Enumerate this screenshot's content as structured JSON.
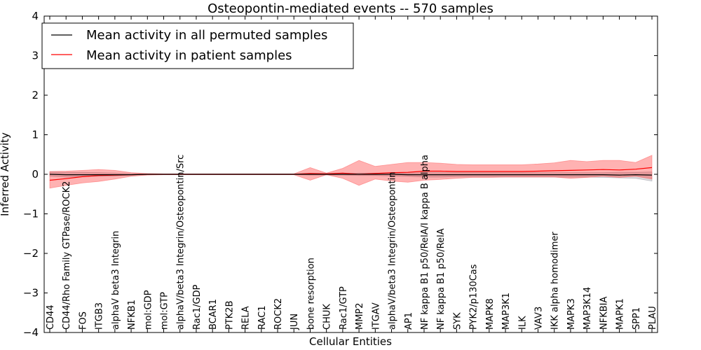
{
  "chart_data": {
    "type": "line",
    "title": "Osteopontin-mediated events -- 570 samples",
    "xlabel": "Cellular Entities",
    "ylabel": "Inferred Activity",
    "ylim": [
      -4,
      4
    ],
    "yticks": [
      4,
      3,
      2,
      1,
      0,
      -1,
      -2,
      -3,
      -4
    ],
    "ytick_labels": [
      "4",
      "3",
      "2",
      "1",
      "0",
      "−1",
      "−2",
      "−3",
      "−4"
    ],
    "legend_position": "top-left",
    "categories": [
      "CD44",
      "CD44/Rho Family GTPase/ROCK2",
      "FOS",
      "ITGB3",
      "alphaV beta3 Integrin",
      "NFKB1",
      "mol:GDP",
      "mol:GTP",
      "alphaV/beta3 Integrin/Osteopontin/Src",
      "Rac1/GDP",
      "BCAR1",
      "PTK2B",
      "RELA",
      "RAC1",
      "ROCK2",
      "JUN",
      "bone resorption",
      "CHUK",
      "Rac1/GTP",
      "MMP2",
      "ITGAV",
      "alphaV/beta3 Integrin/Osteopontin",
      "AP1",
      "NF kappa B1 p50/RelA/I kappa B alpha",
      "NF kappa B1 p50/RelA",
      "SYK",
      "PYK2/p130Cas",
      "MAPK8",
      "MAP3K1",
      "ILK",
      "VAV3",
      "IKK alpha homodimer",
      "MAPK3",
      "MAP3K14",
      "NFKBIA",
      "MAPK1",
      "SPP1",
      "PLAU"
    ],
    "series": [
      {
        "name": "Mean activity in all permuted samples",
        "color": "#000000",
        "values": [
          0.0,
          -0.01,
          -0.01,
          -0.01,
          -0.01,
          -0.01,
          0.0,
          0.0,
          0.0,
          0.0,
          0.0,
          0.0,
          0.0,
          0.0,
          0.0,
          0.0,
          0.0,
          0.0,
          0.0,
          0.0,
          0.0,
          0.0,
          -0.01,
          -0.01,
          -0.01,
          -0.01,
          -0.01,
          -0.01,
          -0.01,
          -0.01,
          -0.01,
          -0.01,
          -0.01,
          -0.01,
          -0.01,
          -0.02,
          -0.01,
          -0.02
        ],
        "band_low": [
          -0.05,
          -0.07,
          -0.06,
          -0.05,
          -0.04,
          -0.02,
          -0.01,
          -0.01,
          -0.01,
          -0.01,
          -0.01,
          -0.01,
          -0.01,
          -0.01,
          -0.01,
          -0.01,
          -0.02,
          -0.02,
          -0.02,
          -0.03,
          -0.03,
          -0.04,
          -0.05,
          -0.07,
          -0.07,
          -0.06,
          -0.06,
          -0.06,
          -0.07,
          -0.07,
          -0.07,
          -0.07,
          -0.07,
          -0.07,
          -0.08,
          -0.09,
          -0.1,
          -0.17
        ],
        "band_high": [
          0.06,
          0.05,
          0.05,
          0.04,
          0.03,
          0.02,
          0.01,
          0.01,
          0.01,
          0.01,
          0.01,
          0.01,
          0.01,
          0.01,
          0.01,
          0.01,
          0.02,
          0.02,
          0.02,
          0.03,
          0.03,
          0.03,
          0.03,
          0.04,
          0.04,
          0.04,
          0.04,
          0.04,
          0.04,
          0.04,
          0.04,
          0.04,
          0.04,
          0.04,
          0.04,
          0.05,
          0.05,
          0.06
        ]
      },
      {
        "name": "Mean activity in patient samples",
        "color": "#ff0000",
        "values": [
          -0.15,
          -0.11,
          -0.06,
          -0.03,
          -0.02,
          -0.01,
          0.0,
          0.0,
          0.0,
          0.0,
          0.0,
          0.0,
          0.0,
          0.0,
          0.0,
          0.0,
          0.02,
          0.01,
          0.03,
          0.0,
          0.02,
          0.04,
          0.05,
          0.08,
          0.08,
          0.07,
          0.07,
          0.07,
          0.07,
          0.07,
          0.08,
          0.09,
          0.1,
          0.11,
          0.12,
          0.11,
          0.13,
          0.17
        ],
        "band_low": [
          -0.35,
          -0.28,
          -0.22,
          -0.18,
          -0.12,
          -0.05,
          -0.02,
          -0.01,
          -0.01,
          -0.01,
          -0.01,
          -0.01,
          -0.01,
          -0.01,
          -0.01,
          -0.01,
          -0.15,
          -0.01,
          -0.1,
          -0.28,
          -0.12,
          -0.17,
          -0.2,
          -0.15,
          -0.13,
          -0.1,
          -0.08,
          -0.08,
          -0.07,
          -0.07,
          -0.07,
          -0.07,
          -0.1,
          -0.08,
          -0.05,
          -0.08,
          -0.05,
          -0.12
        ],
        "band_high": [
          0.07,
          0.08,
          0.1,
          0.12,
          0.1,
          0.04,
          0.02,
          0.01,
          0.01,
          0.01,
          0.01,
          0.01,
          0.01,
          0.01,
          0.01,
          0.01,
          0.17,
          0.03,
          0.15,
          0.35,
          0.2,
          0.25,
          0.3,
          0.3,
          0.28,
          0.25,
          0.24,
          0.24,
          0.24,
          0.24,
          0.26,
          0.29,
          0.35,
          0.32,
          0.35,
          0.35,
          0.3,
          0.48
        ]
      }
    ]
  }
}
